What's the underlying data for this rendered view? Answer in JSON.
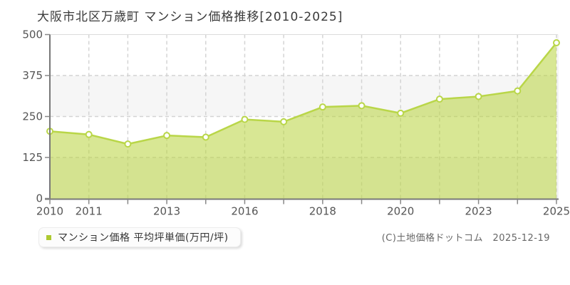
{
  "title": "大阪市北区万歳町 マンション価格推移[2010-2025]",
  "legend": {
    "label": "マンション価格 平均坪単価(万円/坪)"
  },
  "copyright": "(C)土地価格ドットコム　2025-12-19",
  "colors": {
    "line": "#b9d648",
    "area_fill": "rgba(184,212,60,0.55)",
    "marker_fill": "#ffffff",
    "legend_swatch": "#adc930",
    "grid": "#d4d4d4",
    "band": "#f6f6f6",
    "plot_top_border": "#dcdcdc",
    "plot_right_border": "#eaeaea",
    "axis": "#787878",
    "tick": "#888888",
    "tick_label": "#555555"
  },
  "chart_data": {
    "type": "area",
    "title": "大阪市北区万歳町 マンション価格推移[2010-2025]",
    "series_name": "マンション価格",
    "unit": "万円/坪",
    "categories": [
      "2010",
      "2011",
      "",
      "2013",
      "",
      "2016",
      "",
      "2018",
      "",
      "2020",
      "",
      "2023",
      "",
      "2025"
    ],
    "values": [
      205,
      195,
      166,
      192,
      187,
      241,
      234,
      279,
      283,
      260,
      303,
      311,
      328,
      475
    ],
    "ylim": [
      0,
      500
    ],
    "yticks": [
      0,
      125,
      250,
      375,
      500
    ],
    "xlabel": "",
    "ylabel": "平均坪単価(万円/坪)",
    "grid": "dashed horizontal and vertical",
    "bands": "alternating horizontal shading",
    "marker": "hollow circle",
    "legend_position": "bottom-left outside plot"
  }
}
